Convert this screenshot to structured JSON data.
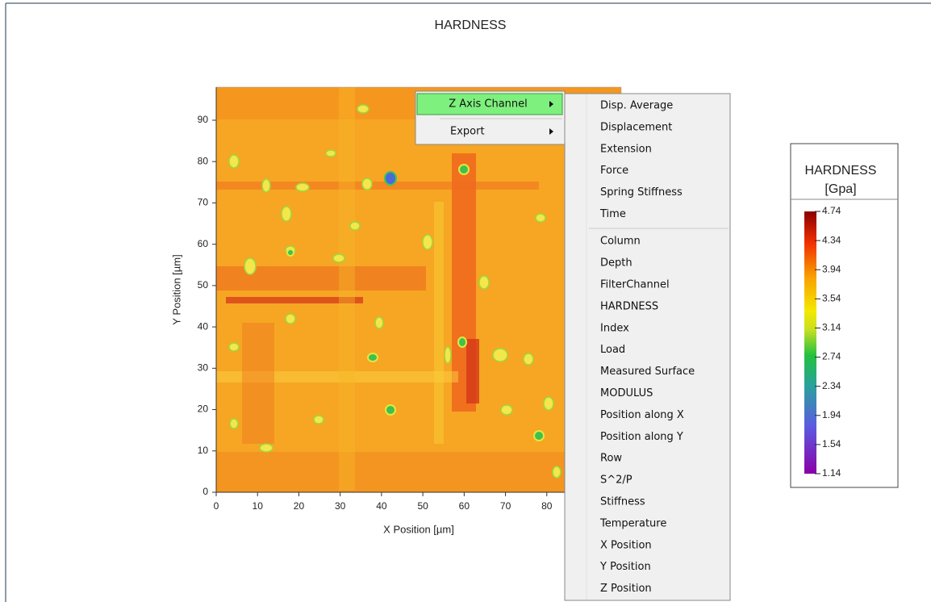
{
  "window": {
    "title": "HARDNESS"
  },
  "chart": {
    "x_label": "X Position [µm]",
    "y_label": "Y Position [µm]",
    "xlim": [
      0,
      98
    ],
    "ylim": [
      0,
      98
    ],
    "xticks": [
      0,
      10,
      20,
      30,
      40,
      50,
      60,
      70,
      80
    ],
    "yticks": [
      0,
      10,
      20,
      30,
      40,
      50,
      60,
      70,
      80,
      90
    ]
  },
  "colorbar": {
    "title": "HARDNESS",
    "unit": "[Gpa]",
    "lim": [
      1.14,
      4.74
    ],
    "ticks": [
      1.14,
      1.54,
      1.94,
      2.34,
      2.74,
      3.14,
      3.54,
      3.94,
      4.34,
      4.74
    ]
  },
  "context_menu": {
    "items": [
      "Z Axis Channel",
      "Export"
    ]
  },
  "submenu": {
    "groups": [
      [
        "Disp. Average",
        "Displacement",
        "Extension",
        "Force",
        "Spring Stiffness",
        "Time"
      ],
      [
        "Column",
        "Depth",
        "FilterChannel",
        "HARDNESS",
        "Index",
        "Load",
        "Measured Surface",
        "MODULUS",
        "Position along X",
        "Position along Y",
        "Row",
        "S^2/P",
        "Stiffness",
        "Temperature",
        "X Position",
        "Y Position",
        "Z Position"
      ]
    ]
  }
}
